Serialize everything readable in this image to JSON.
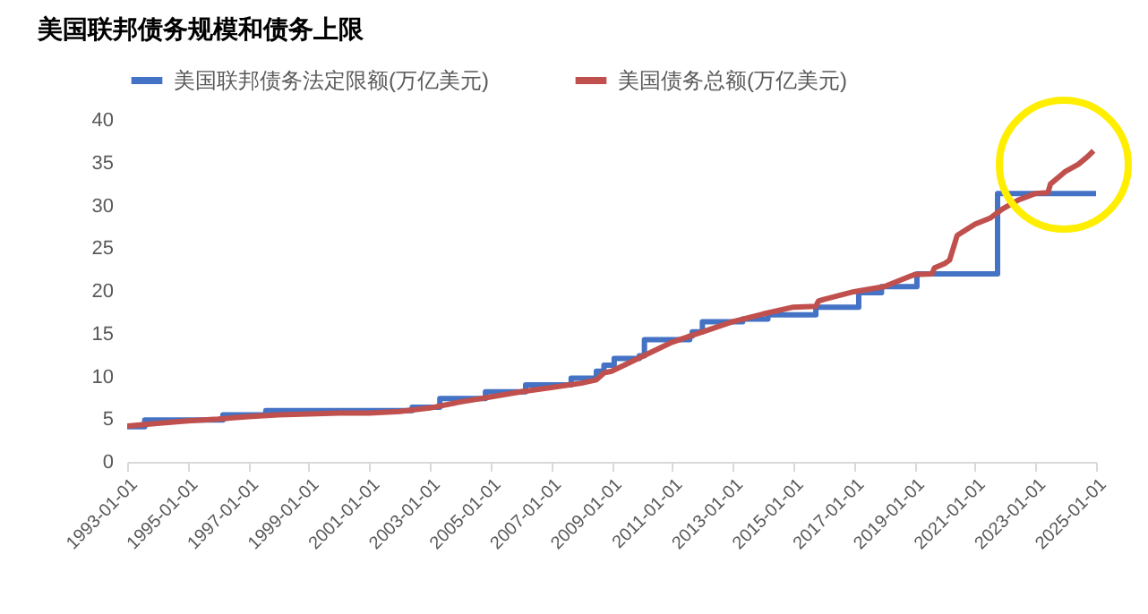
{
  "chart_data": {
    "type": "line",
    "title": "美国联邦债务规模和债务上限",
    "xlim": [
      "1993-01-01",
      "2025-01-01"
    ],
    "xticks": [
      "1993-01-01",
      "1995-01-01",
      "1997-01-01",
      "1999-01-01",
      "2001-01-01",
      "2003-01-01",
      "2005-01-01",
      "2007-01-01",
      "2009-01-01",
      "2011-01-01",
      "2013-01-01",
      "2015-01-01",
      "2017-01-01",
      "2019-01-01",
      "2021-01-01",
      "2023-01-01",
      "2025-01-01"
    ],
    "ylim": [
      0,
      40
    ],
    "yticks": [
      0,
      5,
      10,
      15,
      20,
      25,
      30,
      35,
      40
    ],
    "grid": false,
    "legend": "top",
    "series": [
      {
        "name": "美国联邦债务法定限额(万亿美元)",
        "type": "step",
        "color": "#4472c4",
        "x": [
          "1993-01-01",
          "1993-08-01",
          "1996-03-01",
          "1997-08-01",
          "2002-06-01",
          "2003-05-01",
          "2004-11-01",
          "2006-03-01",
          "2007-09-01",
          "2008-07-01",
          "2008-10-01",
          "2009-02-01",
          "2009-12-01",
          "2010-02-01",
          "2011-08-01",
          "2011-09-01",
          "2012-01-01",
          "2013-05-01",
          "2014-03-01",
          "2015-10-01",
          "2017-03-01",
          "2017-12-01",
          "2019-02-01",
          "2021-10-01",
          "2025-01-01"
        ],
        "values": [
          4.1,
          4.9,
          5.5,
          6.0,
          6.4,
          7.4,
          8.2,
          9.0,
          9.8,
          10.6,
          11.3,
          12.1,
          12.4,
          14.3,
          14.7,
          15.2,
          16.4,
          16.7,
          17.2,
          18.1,
          19.8,
          20.5,
          22.0,
          31.4,
          31.4
        ]
      },
      {
        "name": "美国债务总额(万亿美元)",
        "color": "#c0504d",
        "x": [
          "1993-01-01",
          "1994-01-01",
          "1995-01-01",
          "1996-01-01",
          "1997-01-01",
          "1998-01-01",
          "1999-01-01",
          "2000-01-01",
          "2001-01-01",
          "2002-01-01",
          "2003-01-01",
          "2004-01-01",
          "2005-01-01",
          "2006-01-01",
          "2007-01-01",
          "2008-01-01",
          "2008-07-01",
          "2008-10-01",
          "2009-01-01",
          "2010-01-01",
          "2011-01-01",
          "2012-01-01",
          "2013-01-01",
          "2014-01-01",
          "2015-01-01",
          "2015-10-01",
          "2015-11-01",
          "2016-01-01",
          "2017-01-01",
          "2018-01-01",
          "2019-01-01",
          "2019-08-01",
          "2019-09-01",
          "2020-01-01",
          "2020-03-01",
          "2020-06-01",
          "2021-01-01",
          "2021-07-01",
          "2021-12-01",
          "2022-06-01",
          "2023-01-01",
          "2023-06-01",
          "2023-07-01",
          "2024-01-01",
          "2024-06-01",
          "2024-10-01",
          "2024-12-01"
        ],
        "values": [
          4.2,
          4.5,
          4.8,
          5.0,
          5.3,
          5.5,
          5.6,
          5.7,
          5.7,
          5.9,
          6.3,
          7.0,
          7.6,
          8.2,
          8.7,
          9.2,
          9.6,
          10.4,
          10.6,
          12.3,
          14.0,
          15.2,
          16.4,
          17.3,
          18.1,
          18.2,
          18.8,
          19.0,
          19.9,
          20.5,
          21.9,
          22.0,
          22.7,
          23.2,
          23.6,
          26.5,
          27.8,
          28.5,
          29.6,
          30.6,
          31.4,
          31.5,
          32.5,
          34.0,
          34.8,
          35.8,
          36.4
        ]
      }
    ]
  }
}
